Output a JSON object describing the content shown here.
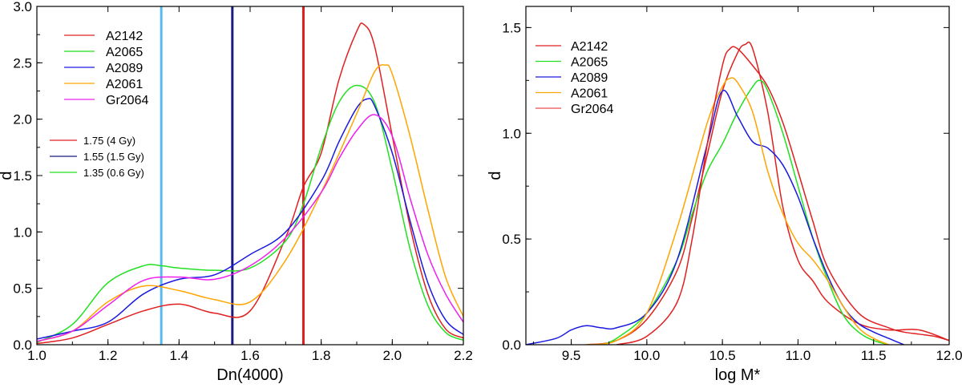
{
  "chart_data": [
    {
      "type": "line",
      "xlabel": "Dn(4000)",
      "ylabel": "d",
      "xlim": [
        1.0,
        2.2
      ],
      "ylim": [
        0.0,
        3.0
      ],
      "xticks": [
        "1.0",
        "1.2",
        "1.4",
        "1.6",
        "1.8",
        "2.0",
        "2.2"
      ],
      "yticks": [
        "0.0",
        "0.5",
        "1.0",
        "1.5",
        "2.0",
        "2.5",
        "3.0"
      ],
      "legend": {
        "placement": "top-left"
      },
      "series": [
        {
          "name": "A2142",
          "color": "#e02020",
          "x": [
            1.0,
            1.1,
            1.2,
            1.3,
            1.4,
            1.5,
            1.6,
            1.7,
            1.75,
            1.8,
            1.85,
            1.9,
            1.92,
            1.95,
            2.0,
            2.05,
            2.1,
            2.15,
            2.2
          ],
          "y": [
            0.01,
            0.06,
            0.18,
            0.3,
            0.36,
            0.28,
            0.3,
            0.95,
            1.4,
            1.7,
            2.35,
            2.78,
            2.84,
            2.65,
            1.85,
            1.05,
            0.45,
            0.14,
            0.06
          ]
        },
        {
          "name": "A2065",
          "color": "#22e022",
          "x": [
            1.0,
            1.1,
            1.2,
            1.3,
            1.35,
            1.4,
            1.5,
            1.6,
            1.7,
            1.75,
            1.8,
            1.85,
            1.9,
            1.95,
            2.0,
            2.05,
            2.1,
            2.15,
            2.2
          ],
          "y": [
            0.02,
            0.18,
            0.55,
            0.7,
            0.7,
            0.68,
            0.66,
            0.68,
            0.92,
            1.25,
            1.75,
            2.15,
            2.3,
            2.15,
            1.55,
            0.85,
            0.35,
            0.11,
            0.04
          ]
        },
        {
          "name": "A2089",
          "color": "#1a1ae0",
          "x": [
            1.0,
            1.1,
            1.2,
            1.3,
            1.4,
            1.5,
            1.6,
            1.7,
            1.8,
            1.85,
            1.9,
            1.93,
            1.95,
            2.0,
            2.05,
            2.1,
            2.15,
            2.2
          ],
          "y": [
            0.05,
            0.12,
            0.2,
            0.45,
            0.58,
            0.62,
            0.8,
            1.0,
            1.45,
            1.8,
            2.1,
            2.18,
            2.12,
            1.7,
            1.1,
            0.55,
            0.22,
            0.09
          ]
        },
        {
          "name": "A2061",
          "color": "#ffa500",
          "x": [
            1.0,
            1.1,
            1.2,
            1.3,
            1.4,
            1.5,
            1.6,
            1.7,
            1.8,
            1.9,
            1.95,
            1.98,
            2.0,
            2.05,
            2.1,
            2.15,
            2.2
          ],
          "y": [
            0.03,
            0.12,
            0.38,
            0.52,
            0.48,
            0.4,
            0.38,
            0.75,
            1.35,
            2.05,
            2.42,
            2.48,
            2.4,
            1.85,
            1.2,
            0.6,
            0.25
          ]
        },
        {
          "name": "Gr2064",
          "color": "#ee20ee",
          "x": [
            1.0,
            1.1,
            1.2,
            1.3,
            1.4,
            1.5,
            1.6,
            1.7,
            1.8,
            1.85,
            1.9,
            1.95,
            2.0,
            2.05,
            2.1,
            2.15,
            2.2
          ],
          "y": [
            0.03,
            0.12,
            0.35,
            0.57,
            0.6,
            0.58,
            0.7,
            0.95,
            1.35,
            1.65,
            1.9,
            2.04,
            1.85,
            1.3,
            0.8,
            0.45,
            0.2
          ]
        }
      ],
      "vlines": [
        {
          "x": 1.35,
          "color": "#55bbee",
          "label": "1.35 (0.6 Gy)",
          "legend_color": "#22e022"
        },
        {
          "x": 1.55,
          "color": "#1a1a80",
          "label": "1.55 (1.5 Gy)",
          "legend_color": "#1a1a80"
        },
        {
          "x": 1.75,
          "color": "#e02020",
          "label": "1.75 (4 Gy)",
          "legend_color": "#e02020"
        }
      ],
      "vline_legend_order": [
        "1.75 (4 Gy)",
        "1.55 (1.5 Gy)",
        "1.35 (0.6 Gy)"
      ]
    },
    {
      "type": "line",
      "xlabel": "log M*",
      "ylabel": "d",
      "xlim": [
        9.2,
        12.0
      ],
      "ylim": [
        0.0,
        1.6
      ],
      "xticks": [
        "9.5",
        "10.0",
        "10.5",
        "11.0",
        "11.5",
        "12.0"
      ],
      "yticks": [
        "0.0",
        "0.5",
        "1.0",
        "1.5"
      ],
      "legend": {
        "placement": "top-left"
      },
      "series": [
        {
          "name": "A2142",
          "color": "#e02020",
          "x": [
            9.6,
            9.8,
            10.0,
            10.2,
            10.3,
            10.4,
            10.5,
            10.6,
            10.65,
            10.7,
            10.8,
            10.9,
            11.0,
            11.1,
            11.2,
            11.4,
            11.6,
            11.8,
            12.0
          ],
          "y": [
            0.0,
            0.02,
            0.12,
            0.35,
            0.6,
            0.9,
            1.2,
            1.38,
            1.42,
            1.4,
            1.1,
            0.65,
            0.4,
            0.3,
            0.2,
            0.1,
            0.07,
            0.07,
            0.02
          ]
        },
        {
          "name": "A2065",
          "color": "#22e022",
          "x": [
            9.7,
            9.8,
            10.0,
            10.2,
            10.3,
            10.4,
            10.5,
            10.6,
            10.7,
            10.75,
            10.8,
            10.9,
            11.0,
            11.1,
            11.2,
            11.3,
            11.4,
            11.5,
            11.6
          ],
          "y": [
            0.0,
            0.03,
            0.15,
            0.4,
            0.62,
            0.82,
            0.95,
            1.1,
            1.22,
            1.25,
            1.2,
            1.0,
            0.75,
            0.5,
            0.3,
            0.14,
            0.06,
            0.02,
            0.0
          ]
        },
        {
          "name": "A2089",
          "color": "#1a1ae0",
          "x": [
            9.2,
            9.4,
            9.5,
            9.6,
            9.7,
            9.8,
            10.0,
            10.2,
            10.4,
            10.5,
            10.6,
            10.7,
            10.8,
            10.9,
            11.0,
            11.1,
            11.2,
            11.3,
            11.4,
            11.5,
            11.6,
            11.7
          ],
          "y": [
            0.0,
            0.03,
            0.07,
            0.09,
            0.08,
            0.08,
            0.15,
            0.4,
            0.95,
            1.2,
            1.08,
            0.96,
            0.93,
            0.85,
            0.7,
            0.5,
            0.32,
            0.18,
            0.1,
            0.06,
            0.03,
            0.0
          ]
        },
        {
          "name": "A2061",
          "color": "#ffa500",
          "x": [
            9.6,
            9.8,
            10.0,
            10.2,
            10.4,
            10.5,
            10.55,
            10.6,
            10.7,
            10.8,
            10.9,
            11.0,
            11.1,
            11.2,
            11.3,
            11.4,
            11.5,
            11.6
          ],
          "y": [
            0.0,
            0.02,
            0.15,
            0.55,
            1.05,
            1.22,
            1.26,
            1.24,
            1.1,
            0.82,
            0.62,
            0.48,
            0.4,
            0.3,
            0.18,
            0.08,
            0.03,
            0.0
          ]
        },
        {
          "name": "Gr2064",
          "color": "#e02020",
          "thin": true,
          "x": [
            9.8,
            10.0,
            10.2,
            10.3,
            10.4,
            10.5,
            10.55,
            10.6,
            10.7,
            10.8,
            10.9,
            11.0,
            11.1,
            11.2,
            11.4,
            11.6,
            11.7,
            11.8,
            11.9,
            12.0
          ],
          "y": [
            0.0,
            0.04,
            0.2,
            0.5,
            0.95,
            1.32,
            1.4,
            1.4,
            1.32,
            1.22,
            1.05,
            0.82,
            0.58,
            0.36,
            0.15,
            0.08,
            0.06,
            0.05,
            0.04,
            0.02
          ]
        }
      ]
    }
  ]
}
